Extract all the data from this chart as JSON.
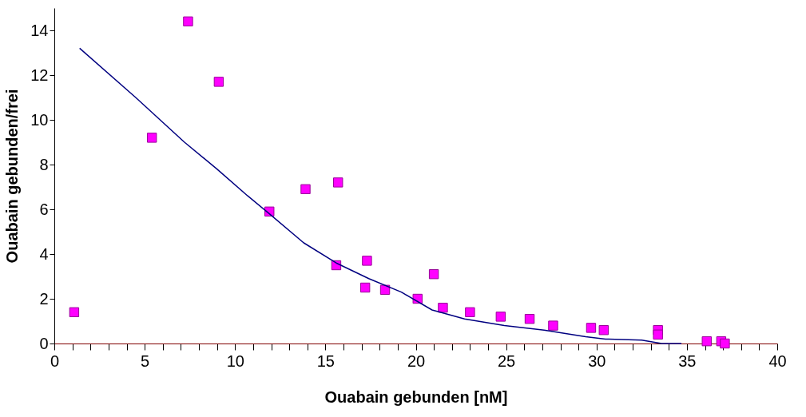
{
  "chart_data": {
    "type": "scatter",
    "xlabel": "Ouabain gebunden [nM]",
    "ylabel": "Ouabain gebunden/frei",
    "xlim": [
      0,
      40
    ],
    "ylim": [
      0,
      15
    ],
    "xticks": [
      0,
      {
        "value": 1,
        "label": null
      },
      {
        "value": 2,
        "label": null
      },
      {
        "value": 3,
        "label": null
      },
      {
        "value": 4,
        "label": null
      },
      5,
      {
        "value": 6,
        "label": null
      },
      {
        "value": 7,
        "label": null
      },
      {
        "value": 8,
        "label": null
      },
      {
        "value": 9,
        "label": null
      },
      10,
      {
        "value": 11,
        "label": null
      },
      {
        "value": 12,
        "label": null
      },
      {
        "value": 13,
        "label": null
      },
      {
        "value": 14,
        "label": null
      },
      15,
      {
        "value": 16,
        "label": null
      },
      {
        "value": 17,
        "label": null
      },
      {
        "value": 18,
        "label": null
      },
      {
        "value": 19,
        "label": null
      },
      20,
      {
        "value": 21,
        "label": null
      },
      {
        "value": 22,
        "label": null
      },
      {
        "value": 23,
        "label": null
      },
      {
        "value": 24,
        "label": null
      },
      25,
      {
        "value": 26,
        "label": null
      },
      {
        "value": 27,
        "label": null
      },
      {
        "value": 28,
        "label": null
      },
      {
        "value": 29,
        "label": null
      },
      30,
      {
        "value": 31,
        "label": null
      },
      {
        "value": 32,
        "label": null
      },
      {
        "value": 33,
        "label": null
      },
      {
        "value": 34,
        "label": null
      },
      35,
      {
        "value": 36,
        "label": null
      },
      {
        "value": 37,
        "label": null
      },
      {
        "value": 38,
        "label": null
      },
      {
        "value": 39,
        "label": null
      },
      40
    ],
    "yticks": [
      0,
      2,
      4,
      6,
      8,
      10,
      12,
      14
    ],
    "grid": false,
    "series": [
      {
        "marker": "square",
        "color": "#ff00ff",
        "x": [
          1.1,
          5.4,
          7.4,
          9.1,
          11.9,
          13.9,
          15.7,
          15.6,
          17.3,
          17.2,
          18.3,
          20.1,
          21.0,
          21.5,
          23.0,
          24.7,
          26.3,
          27.6,
          29.7,
          30.4,
          33.4,
          33.4,
          36.1,
          36.9,
          37.1
        ],
        "values": [
          1.4,
          9.2,
          14.4,
          11.7,
          5.9,
          6.9,
          7.2,
          3.5,
          3.7,
          2.5,
          2.4,
          2.0,
          3.1,
          1.6,
          1.4,
          1.2,
          1.1,
          0.8,
          0.7,
          0.6,
          0.6,
          0.4,
          0.1,
          0.1,
          0.0
        ]
      },
      {
        "type": "line",
        "marker": "none",
        "line_style": "solid",
        "color": "#000080",
        "x": [
          1.4,
          4.5,
          7.2,
          9.0,
          10.7,
          11.9,
          13.8,
          15.6,
          17.4,
          19.2,
          20.9,
          22.7,
          24.9,
          27.1,
          29.4,
          30.5,
          32.5,
          33.6,
          34.7
        ],
        "values": [
          13.2,
          11.0,
          9.0,
          7.8,
          6.6,
          5.8,
          4.5,
          3.6,
          2.9,
          2.3,
          1.5,
          1.1,
          0.8,
          0.6,
          0.3,
          0.2,
          0.15,
          0.0,
          0.0
        ]
      }
    ]
  }
}
